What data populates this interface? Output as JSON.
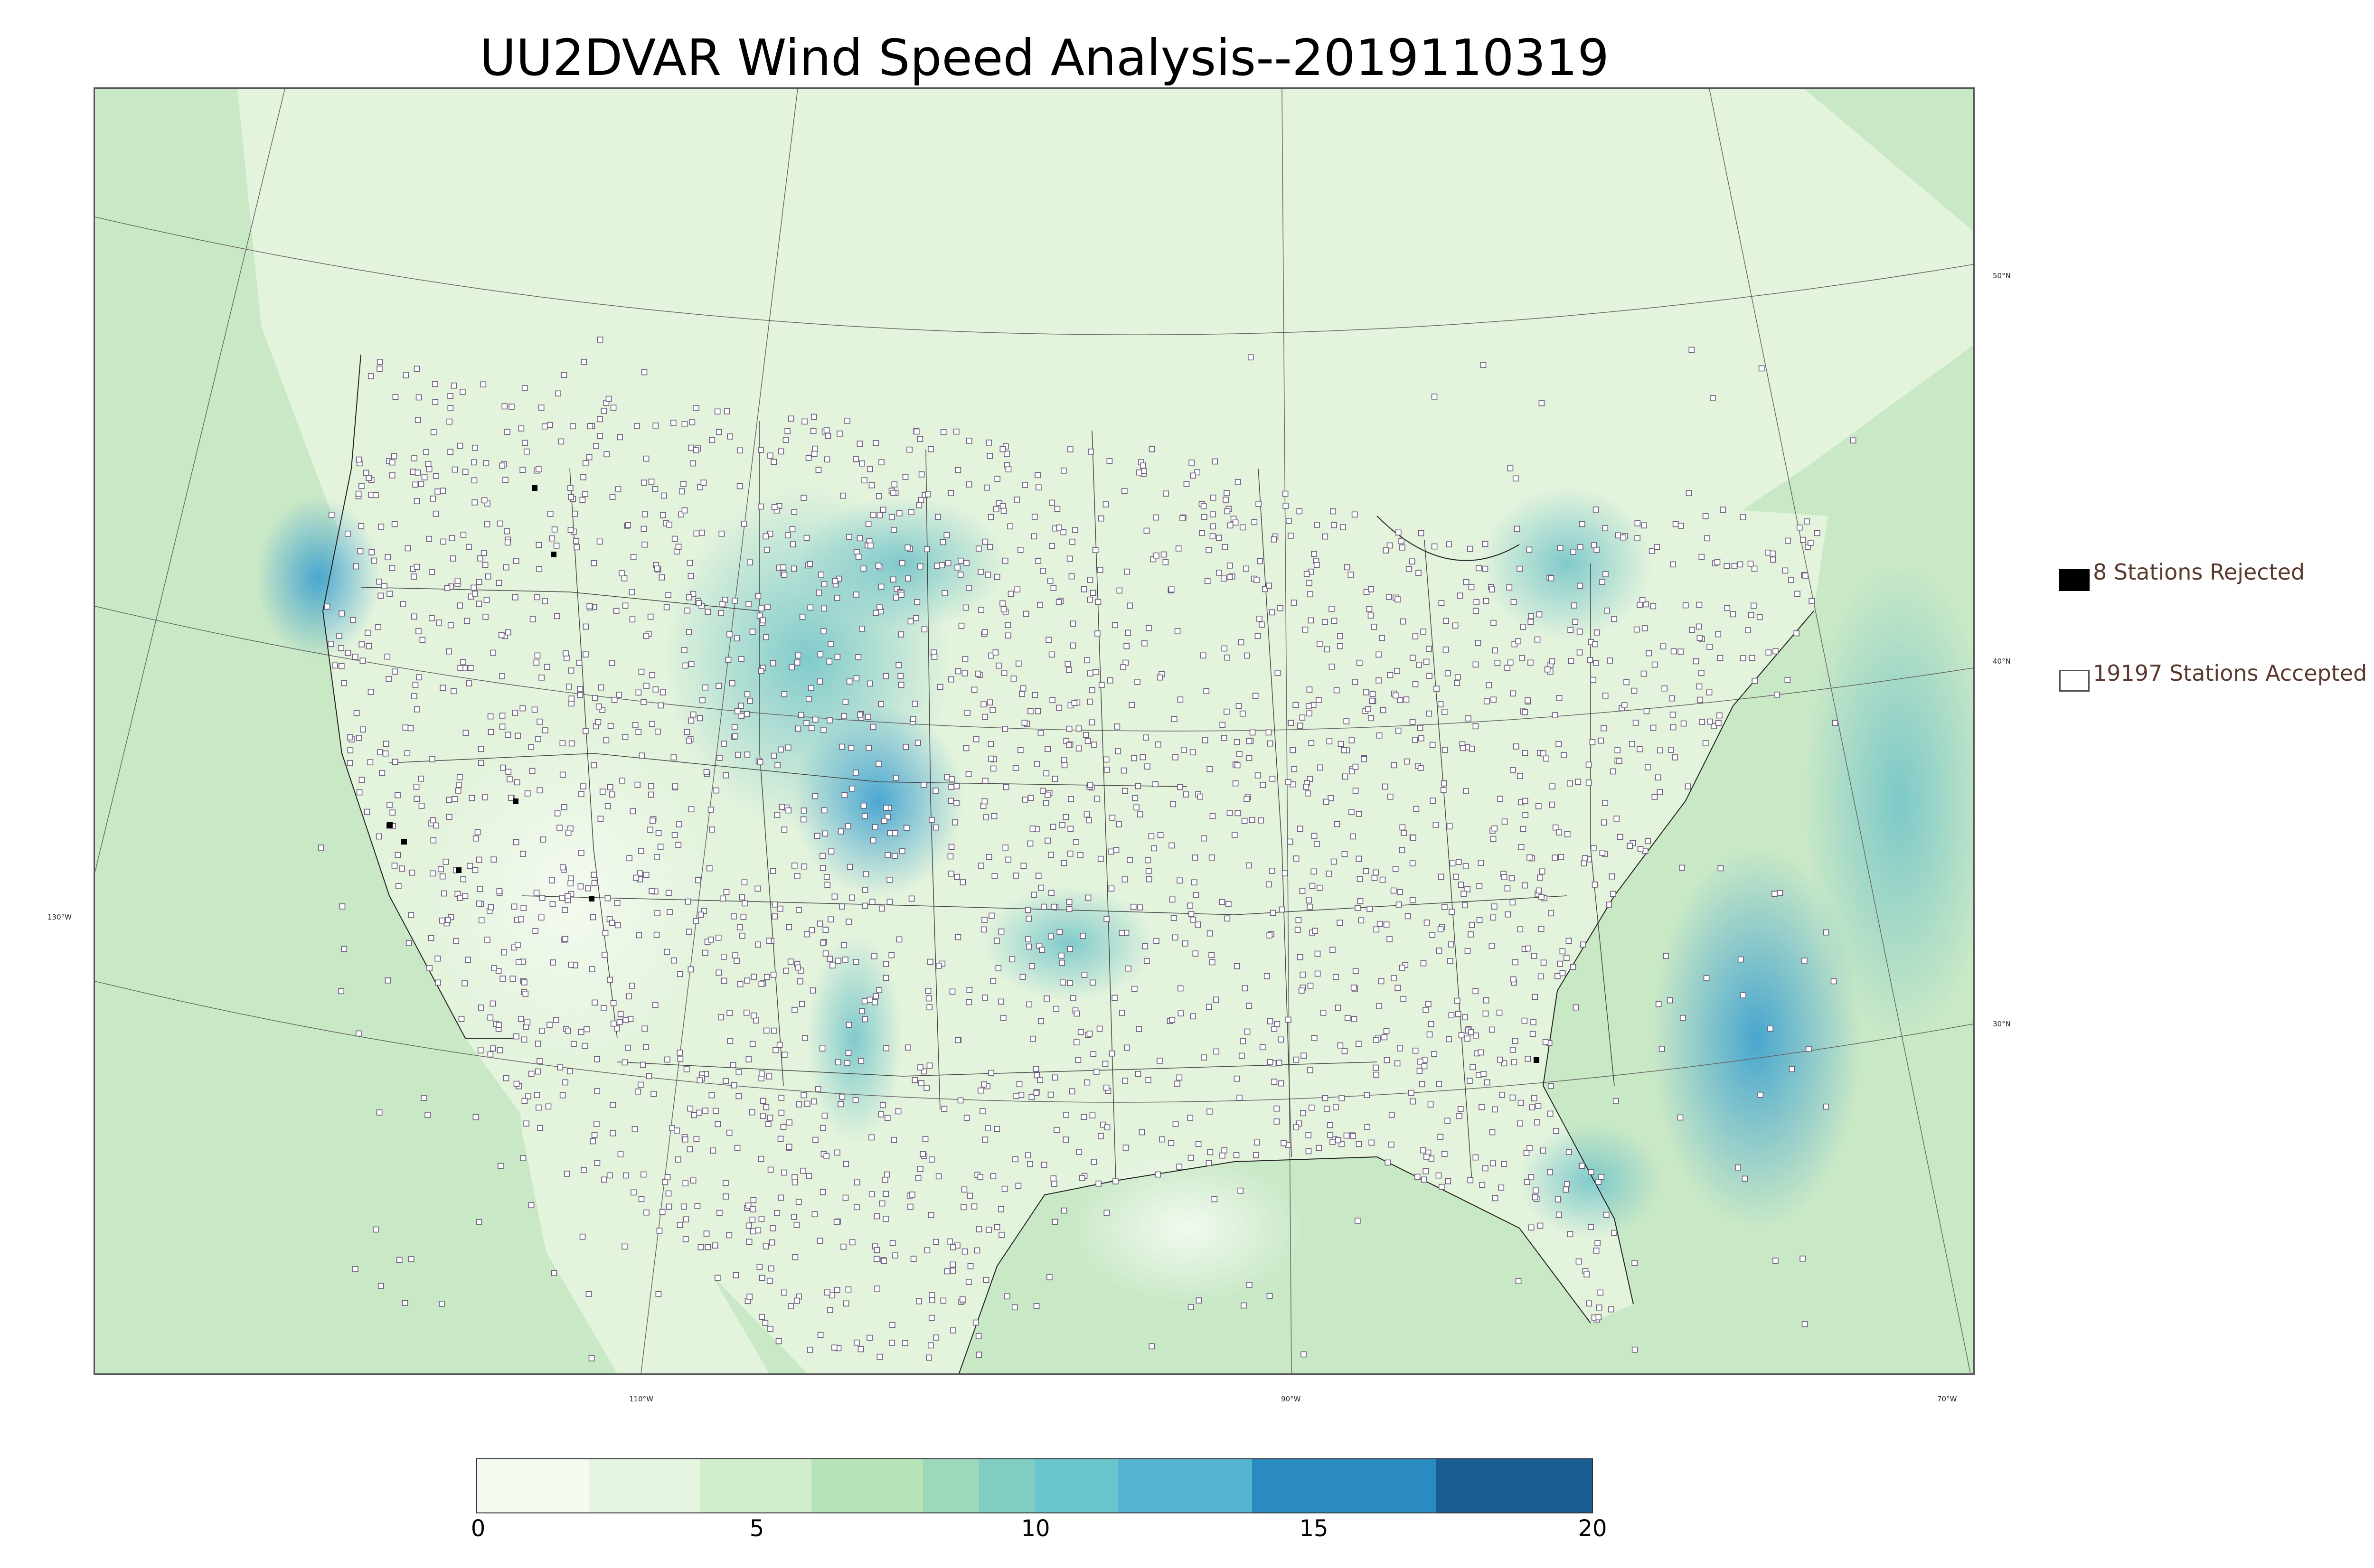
{
  "title": "UU2DVAR Wind Speed Analysis--2019110319",
  "legend": {
    "rejected": {
      "label": "8 Stations Rejected",
      "marker_color": "#000000"
    },
    "accepted": {
      "label": "19197 Stations Accepted",
      "marker_color": "#ffffff"
    }
  },
  "latitude_labels": [
    "50°N",
    "40°N",
    "30°N"
  ],
  "longitude_labels": [
    "130°W",
    "110°W",
    "90°W",
    "70°W"
  ],
  "colorbar": {
    "ticks": [
      "0",
      "5",
      "10",
      "15",
      "20"
    ],
    "bins": [
      {
        "from": 0,
        "to": 2,
        "color": "#f5fbf1"
      },
      {
        "from": 2,
        "to": 4,
        "color": "#e6f5e0"
      },
      {
        "from": 4,
        "to": 6,
        "color": "#d1edcb"
      },
      {
        "from": 6,
        "to": 8,
        "color": "#b6e3b8"
      },
      {
        "from": 8,
        "to": 9,
        "color": "#9bd8bc"
      },
      {
        "from": 9,
        "to": 10,
        "color": "#7fcdc3"
      },
      {
        "from": 10,
        "to": 11.5,
        "color": "#6ac6cd"
      },
      {
        "from": 11.5,
        "to": 13.9,
        "color": "#55b4d2"
      },
      {
        "from": 13.9,
        "to": 17.2,
        "color": "#2a8bc0"
      },
      {
        "from": 17.2,
        "to": 20,
        "color": "#185e91"
      }
    ]
  },
  "colors": {
    "ocean": "#c9e8c6",
    "land": "#e3f3dc",
    "windy": "#8fd0c2",
    "strong": "#4aaed0",
    "station_edge": "#6b5b7b"
  }
}
